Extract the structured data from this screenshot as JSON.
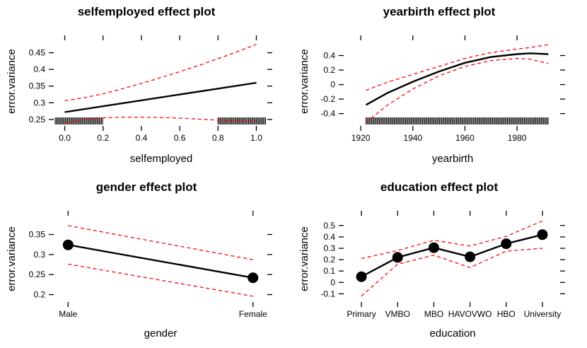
{
  "chart_data": [
    {
      "type": "line",
      "title": "selfemployed effect plot",
      "xlabel": "selfemployed",
      "ylabel": "error.variance",
      "xlim": [
        -0.05,
        1.05
      ],
      "ylim": [
        0.235,
        0.485
      ],
      "xticks": [
        0.0,
        0.2,
        0.4,
        0.6,
        0.8,
        1.0
      ],
      "xtick_labels": [
        "0.0",
        "0.2",
        "0.4",
        "0.6",
        "0.8",
        "1.0"
      ],
      "yticks": [
        0.25,
        0.3,
        0.35,
        0.4,
        0.45
      ],
      "ytick_labels": [
        "0.25",
        "0.3",
        "0.35",
        "0.4",
        "0.45"
      ],
      "series": [
        {
          "role": "fit",
          "x": [
            0.0,
            1.0
          ],
          "y": [
            0.272,
            0.36
          ]
        },
        {
          "role": "lower",
          "x": [
            0.0,
            0.1,
            0.2,
            0.3,
            0.4,
            0.5,
            0.6,
            0.7,
            0.8,
            0.9,
            1.0
          ],
          "y": [
            0.238,
            0.25,
            0.255,
            0.257,
            0.257,
            0.256,
            0.254,
            0.251,
            0.248,
            0.246,
            0.245
          ]
        },
        {
          "role": "upper",
          "x": [
            0.0,
            0.1,
            0.2,
            0.3,
            0.4,
            0.5,
            0.6,
            0.7,
            0.8,
            0.9,
            1.0
          ],
          "y": [
            0.306,
            0.315,
            0.327,
            0.342,
            0.358,
            0.375,
            0.393,
            0.412,
            0.432,
            0.453,
            0.475
          ]
        }
      ],
      "rug": {
        "ranges": [
          [
            -0.05,
            0.2
          ],
          [
            0.8,
            1.05
          ]
        ]
      },
      "grid": false
    },
    {
      "type": "line",
      "title": "yearbirth effect plot",
      "xlabel": "yearbirth",
      "ylabel": "error.variance",
      "xlim": [
        1914,
        1996
      ],
      "ylim": [
        -0.55,
        0.6
      ],
      "xticks": [
        1920,
        1940,
        1960,
        1980
      ],
      "xtick_labels": [
        "1920",
        "1940",
        "1960",
        "1980"
      ],
      "yticks": [
        -0.4,
        -0.2,
        0.0,
        0.2,
        0.4
      ],
      "ytick_labels": [
        "-0.4",
        "-0.2",
        "0",
        "0.2",
        "0.4"
      ],
      "series": [
        {
          "role": "fit",
          "x": [
            1922,
            1930,
            1940,
            1950,
            1960,
            1970,
            1980,
            1985,
            1992
          ],
          "y": [
            -0.28,
            -0.12,
            0.04,
            0.18,
            0.3,
            0.38,
            0.42,
            0.43,
            0.42
          ]
        },
        {
          "role": "lower",
          "x": [
            1922,
            1930,
            1940,
            1950,
            1960,
            1970,
            1980,
            1985,
            1992
          ],
          "y": [
            -0.52,
            -0.29,
            -0.06,
            0.12,
            0.25,
            0.33,
            0.36,
            0.35,
            0.29
          ]
        },
        {
          "role": "upper",
          "x": [
            1922,
            1930,
            1940,
            1950,
            1960,
            1970,
            1980,
            1985,
            1992
          ],
          "y": [
            -0.08,
            0.03,
            0.14,
            0.25,
            0.36,
            0.44,
            0.49,
            0.51,
            0.55
          ]
        }
      ],
      "rug": {
        "ranges": [
          [
            1922,
            1992
          ]
        ]
      },
      "grid": false
    },
    {
      "type": "line",
      "title": "gender effect plot",
      "xlabel": "gender",
      "ylabel": "error.variance",
      "xlim": [
        -0.07,
        1.07
      ],
      "ylim": [
        0.185,
        0.395
      ],
      "xticks": [
        0,
        1
      ],
      "xtick_labels": [
        "Male",
        "Female"
      ],
      "yticks": [
        0.2,
        0.25,
        0.3,
        0.35
      ],
      "ytick_labels": [
        "0.2",
        "0.25",
        "0.3",
        "0.35"
      ],
      "series": [
        {
          "role": "fit",
          "x": [
            0,
            1
          ],
          "y": [
            0.324,
            0.242
          ]
        },
        {
          "role": "lower",
          "x": [
            0,
            1
          ],
          "y": [
            0.276,
            0.196
          ]
        },
        {
          "role": "upper",
          "x": [
            0,
            1
          ],
          "y": [
            0.372,
            0.287
          ]
        }
      ],
      "markers": true,
      "grid": false
    },
    {
      "type": "line",
      "title": "education effect plot",
      "xlabel": "education",
      "ylabel": "error.variance",
      "xlim": [
        -0.45,
        5.45
      ],
      "ylim": [
        -0.16,
        0.58
      ],
      "xticks": [
        0,
        1,
        2,
        3,
        4,
        5
      ],
      "xtick_labels": [
        "Primary",
        "VMBO",
        "MBO",
        "HAVOVWO",
        "HBO",
        "University"
      ],
      "yticks": [
        -0.1,
        0.0,
        0.1,
        0.2,
        0.3,
        0.4,
        0.5
      ],
      "ytick_labels": [
        "-0.1",
        "0",
        "0.1",
        "0.2",
        "0.3",
        "0.4",
        "0.5"
      ],
      "series": [
        {
          "role": "fit",
          "x": [
            0,
            1,
            2,
            3,
            4,
            5
          ],
          "y": [
            0.05,
            0.22,
            0.305,
            0.225,
            0.34,
            0.42
          ]
        },
        {
          "role": "lower",
          "x": [
            0,
            1,
            2,
            3,
            4,
            5
          ],
          "y": [
            -0.12,
            0.16,
            0.24,
            0.13,
            0.275,
            0.3
          ]
        },
        {
          "role": "upper",
          "x": [
            0,
            1,
            2,
            3,
            4,
            5
          ],
          "y": [
            0.21,
            0.28,
            0.37,
            0.32,
            0.405,
            0.54
          ]
        }
      ],
      "markers": true,
      "grid": false
    }
  ],
  "colors": {
    "fit": "#000000",
    "band": "#ff0000",
    "rug": "#000000"
  }
}
